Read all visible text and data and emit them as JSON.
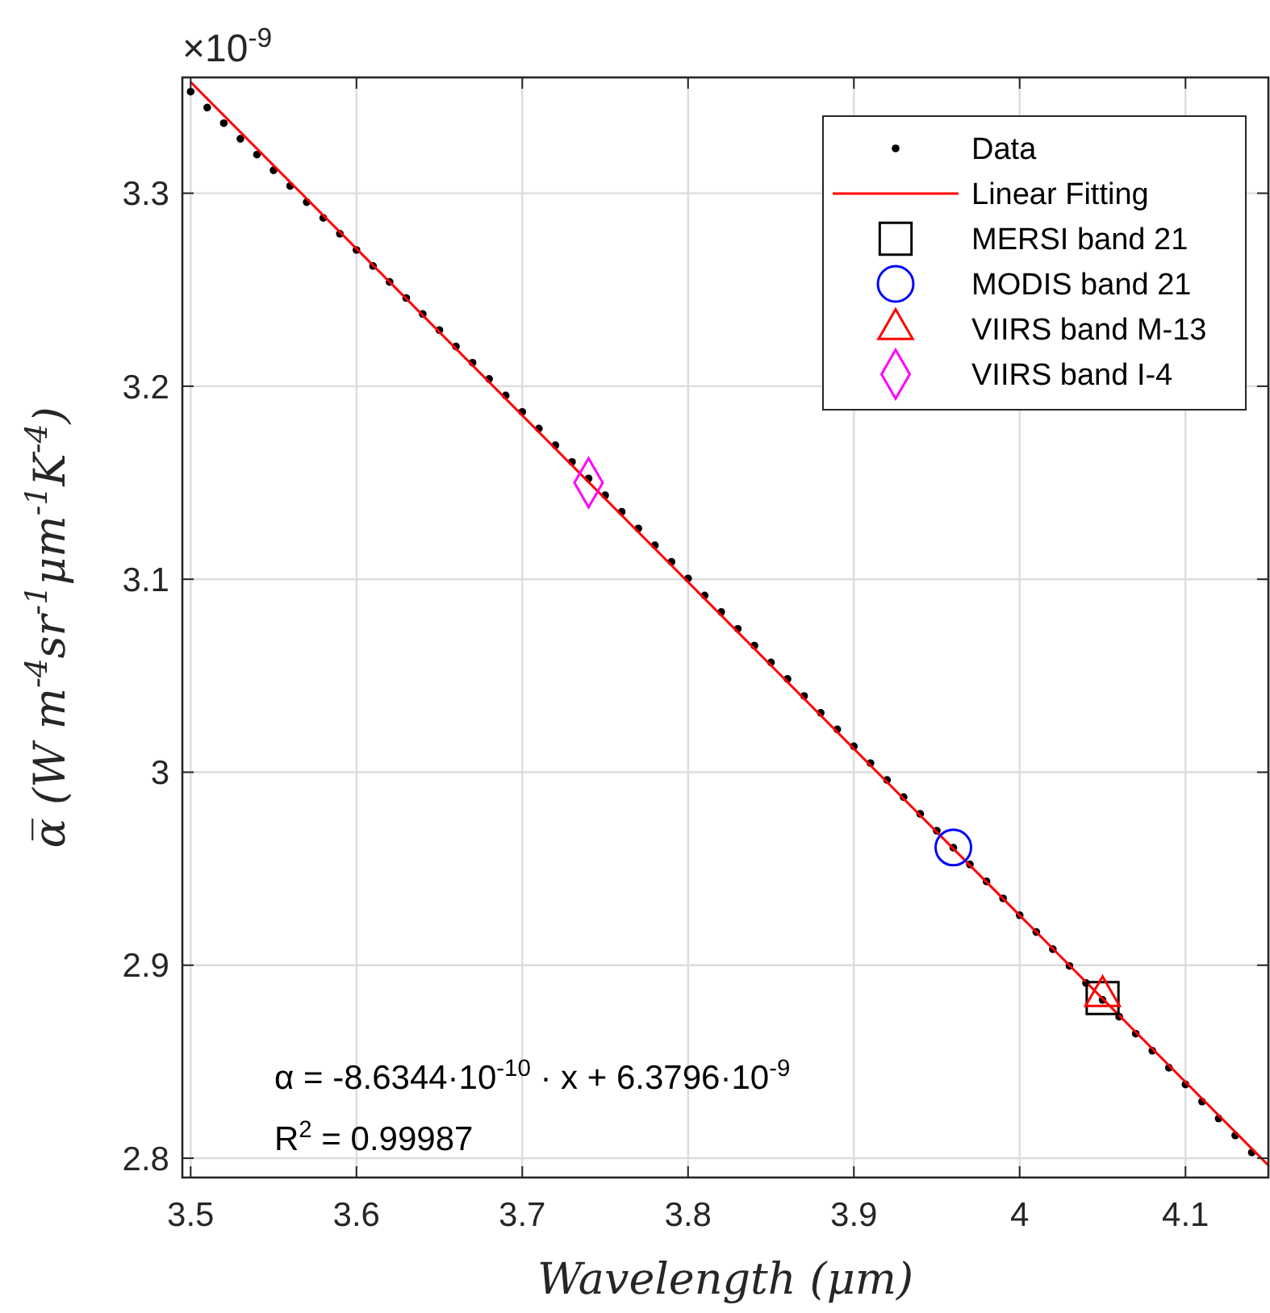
{
  "chart_data": {
    "type": "scatter",
    "xlabel": "Wavelength (μm)",
    "ylabel": "α̅ (W m$^{-4}$sr$^{-1}$μm$^{-1}$K$^{-4}$)",
    "annotations": [
      "×10$^{-9}$",
      "α = -8.6344·10$^{-10}$ · x + 6.3796·10$^{-9}$",
      "R$^{2}$ = 0.99987"
    ],
    "xlim": [
      3.495,
      4.15
    ],
    "ylim": [
      2.79,
      3.36
    ],
    "xticks": [
      3.5,
      3.6,
      3.7,
      3.8,
      3.9,
      4,
      4.1
    ],
    "yticks": [
      2.8,
      2.9,
      3,
      3.1,
      3.2,
      3.3
    ],
    "grid": true,
    "legend": "top right",
    "series": [
      {
        "name": "Data",
        "marker": "circle",
        "color": "#000000",
        "x": [
          3.5,
          3.51,
          3.52,
          3.53,
          3.54,
          3.55,
          3.56,
          3.57,
          3.58,
          3.59,
          3.6,
          3.61,
          3.62,
          3.63,
          3.64,
          3.65,
          3.66,
          3.67,
          3.68,
          3.69,
          3.7,
          3.71,
          3.72,
          3.73,
          3.74,
          3.75,
          3.76,
          3.77,
          3.78,
          3.79,
          3.8,
          3.81,
          3.82,
          3.83,
          3.84,
          3.85,
          3.86,
          3.87,
          3.88,
          3.89,
          3.9,
          3.91,
          3.92,
          3.93,
          3.94,
          3.95,
          3.96,
          3.97,
          3.98,
          3.99,
          4,
          4.01,
          4.02,
          4.03,
          4.04,
          4.05,
          4.06,
          4.07,
          4.08,
          4.09,
          4.1,
          4.11,
          4.12,
          4.13,
          4.14
        ],
        "values": [
          3.3526,
          3.3444,
          3.3363,
          3.3282,
          3.32,
          3.3119,
          3.3037,
          3.2954,
          3.2872,
          3.279,
          3.2706,
          3.2623,
          3.254,
          3.2457,
          3.2374,
          3.2291,
          3.2206,
          3.2122,
          3.2038,
          3.1952,
          3.1867,
          3.1781,
          3.1694,
          3.1608,
          3.1522,
          3.1435,
          3.1349,
          3.1263,
          3.1176,
          3.109,
          3.1004,
          3.0916,
          3.083,
          3.0743,
          3.0656,
          3.0569,
          3.0483,
          3.0395,
          3.0308,
          3.0222,
          3.0134,
          3.0047,
          2.996,
          2.9871,
          2.9784,
          2.9697,
          2.9609,
          2.9522,
          2.9434,
          2.9346,
          2.9259,
          2.9172,
          2.9083,
          2.8996,
          2.8908,
          2.882,
          2.8733,
          2.8645,
          2.8557,
          2.8469,
          2.8382,
          2.8293,
          2.8206,
          2.8118,
          2.803
        ]
      },
      {
        "name": "Linear Fitting",
        "type": "line",
        "marker": "none",
        "line_style": "solid",
        "color": "#ff0000",
        "x": [
          3.5,
          4.15
        ],
        "values": [
          3.3576,
          2.7963
        ]
      },
      {
        "name": "MERSI band 21",
        "marker": "square",
        "color": "#000000",
        "x": [
          4.05
        ],
        "values": [
          2.883
        ]
      },
      {
        "name": "MODIS band 21",
        "marker": "circle",
        "color": "#0000ff",
        "x": [
          3.96
        ],
        "values": [
          2.961
        ]
      },
      {
        "name": "VIIRS band M-13",
        "marker": "triangle",
        "color": "#ff0000",
        "x": [
          4.05
        ],
        "values": [
          2.884
        ]
      },
      {
        "name": "VIIRS band I-4",
        "marker": "diamond",
        "color": "#ff00ff",
        "x": [
          3.74
        ],
        "values": [
          3.15
        ]
      }
    ]
  }
}
